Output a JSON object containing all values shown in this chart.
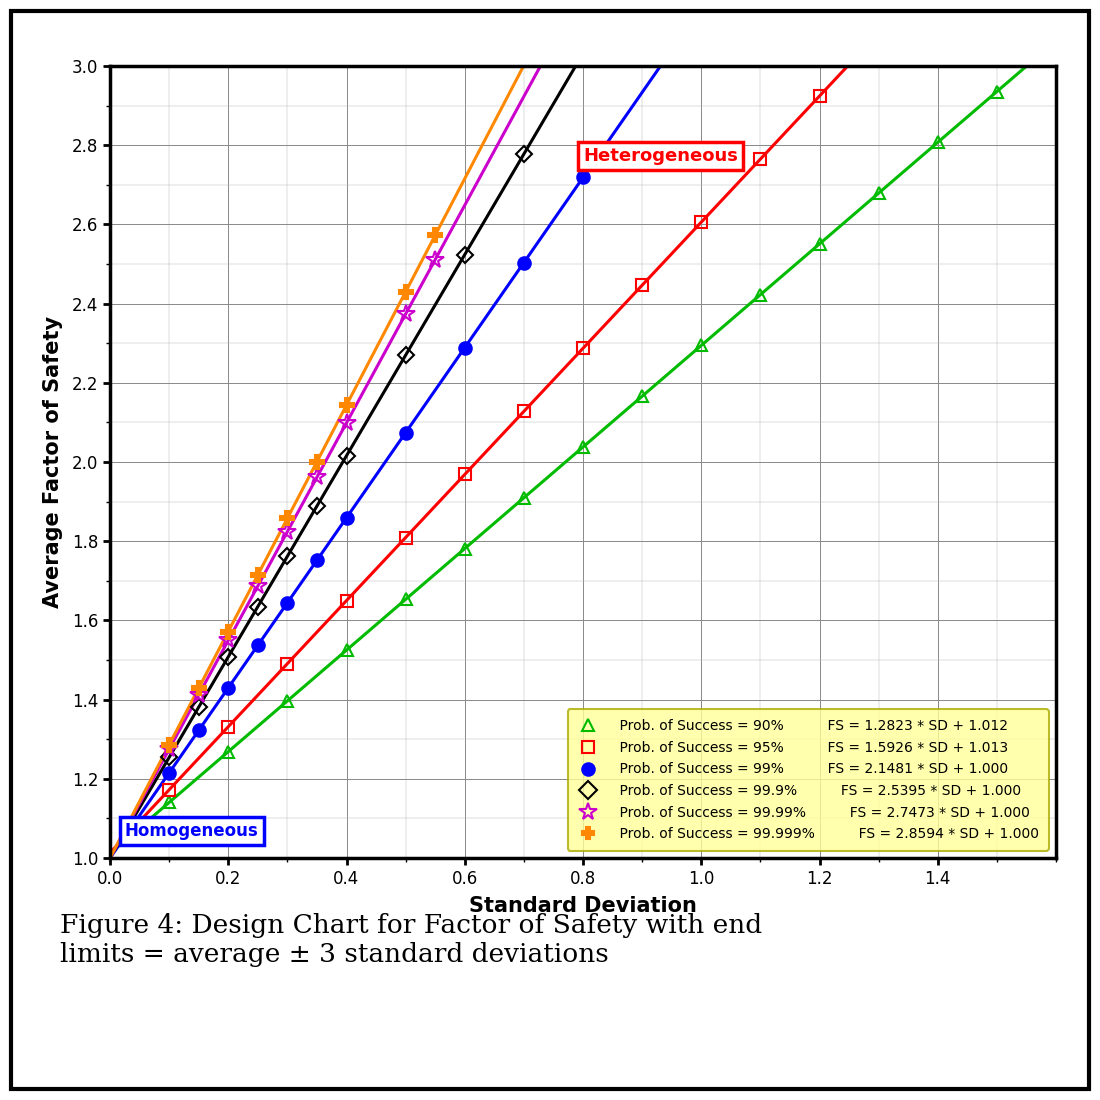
{
  "xlabel": "Standard Deviation",
  "ylabel": "Average Factor of Safety",
  "xlim": [
    0.0,
    1.6
  ],
  "ylim": [
    1.0,
    3.0
  ],
  "xticks": [
    0.0,
    0.2,
    0.4,
    0.6,
    0.8,
    1.0,
    1.2,
    1.4
  ],
  "yticks": [
    1.0,
    1.2,
    1.4,
    1.6,
    1.8,
    2.0,
    2.2,
    2.4,
    2.6,
    2.8,
    3.0
  ],
  "series": [
    {
      "label": "Prob. of Success = 90%",
      "formula": "FS = 1.2823 * SD + 1.012",
      "slope": 1.2823,
      "intercept": 1.012,
      "color": "#00bb00",
      "marker": "^",
      "mfc": "none",
      "linewidth": 2.2
    },
    {
      "label": "Prob. of Success = 95%",
      "formula": "FS = 1.5926 * SD + 1.013",
      "slope": 1.5926,
      "intercept": 1.013,
      "color": "#ff0000",
      "marker": "s",
      "mfc": "none",
      "linewidth": 2.2
    },
    {
      "label": "Prob. of Success = 99%",
      "formula": "FS = 2.1481 * SD + 1.000",
      "slope": 2.1481,
      "intercept": 1.0,
      "color": "#0000ff",
      "marker": "o",
      "mfc": "#0000ff",
      "linewidth": 2.2
    },
    {
      "label": "Prob. of Success = 99.9%",
      "formula": "FS = 2.5395 * SD + 1.000",
      "slope": 2.5395,
      "intercept": 1.0,
      "color": "#000000",
      "marker": "D",
      "mfc": "none",
      "linewidth": 2.2
    },
    {
      "label": "Prob. of Success = 99.99%",
      "formula": "FS = 2.7473 * SD + 1.000",
      "slope": 2.7473,
      "intercept": 1.0,
      "color": "#cc00cc",
      "marker": "*",
      "mfc": "none",
      "linewidth": 2.2
    },
    {
      "label": "Prob. of Success = 99.999%",
      "formula": "FS = 2.8594 * SD + 1.000",
      "slope": 2.8594,
      "intercept": 1.0,
      "color": "#ff8800",
      "marker": "P",
      "mfc": "#ff8800",
      "linewidth": 2.2
    }
  ],
  "heterogeneous_label": "Heterogeneous",
  "homogeneous_label": "Homogeneous",
  "legend_bg": "#ffff99",
  "background_color": "#ffffff",
  "caption": "Figure 4: Design Chart for Factor of Safety with end\nlimits = average ± 3 standard deviations"
}
